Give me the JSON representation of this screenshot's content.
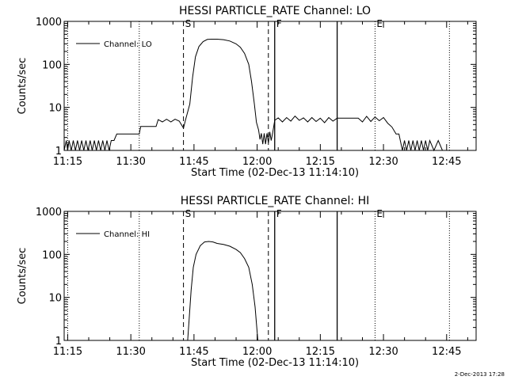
{
  "chart_data": [
    {
      "type": "line",
      "title": "HESSI PARTICLE_RATE Channel: LO",
      "xlabel": "Start Time (02-Dec-13 11:14:10)",
      "ylabel": "Counts/sec",
      "yscale": "log",
      "xlim": [
        "11:14:10",
        "12:52:00"
      ],
      "ylim": [
        1,
        1000
      ],
      "xticks": [
        "11:15",
        "11:30",
        "11:45",
        "12:00",
        "12:15",
        "12:30",
        "12:45"
      ],
      "yticks": [
        "1",
        "10",
        "100",
        "1000"
      ],
      "legend": {
        "position": "top-left",
        "entries": [
          "Channel: LO"
        ]
      },
      "markers": [
        {
          "label": "S",
          "time": "11:42:30",
          "style": "dashed"
        },
        {
          "label": "",
          "time": "12:02:40",
          "style": "dashed"
        },
        {
          "label": "F",
          "time": "12:04:10",
          "style": "solid"
        },
        {
          "label": "",
          "time": "12:19:00",
          "style": "solid"
        },
        {
          "label": "E",
          "time": "12:28:00",
          "style": "dotted"
        },
        {
          "label": "",
          "time": "11:32:00",
          "style": "dotted"
        },
        {
          "label": "",
          "time": "12:45:40",
          "style": "dotted"
        },
        {
          "label": "",
          "time": "11:15:00",
          "style": "dotted"
        }
      ],
      "series": [
        {
          "name": "Channel: LO",
          "points": [
            [
              "11:14:10",
              1.0
            ],
            [
              "11:14:40",
              1.7
            ],
            [
              "11:15:00",
              1.0
            ],
            [
              "11:15:20",
              1.7
            ],
            [
              "11:15:50",
              1.0
            ],
            [
              "11:16:20",
              1.7
            ],
            [
              "11:16:50",
              1.0
            ],
            [
              "11:17:20",
              1.7
            ],
            [
              "11:17:50",
              1.0
            ],
            [
              "11:18:20",
              1.7
            ],
            [
              "11:18:50",
              1.0
            ],
            [
              "11:19:20",
              1.7
            ],
            [
              "11:19:50",
              1.0
            ],
            [
              "11:20:20",
              1.7
            ],
            [
              "11:20:50",
              1.0
            ],
            [
              "11:21:20",
              1.7
            ],
            [
              "11:21:50",
              1.0
            ],
            [
              "11:22:20",
              1.7
            ],
            [
              "11:22:50",
              1.0
            ],
            [
              "11:23:20",
              1.7
            ],
            [
              "11:23:50",
              1.0
            ],
            [
              "11:24:20",
              1.7
            ],
            [
              "11:24:50",
              1.0
            ],
            [
              "11:25:20",
              1.7
            ],
            [
              "11:26:00",
              1.7
            ],
            [
              "11:26:40",
              2.4
            ],
            [
              "11:30:00",
              2.4
            ],
            [
              "11:32:00",
              2.4
            ],
            [
              "11:32:20",
              3.6
            ],
            [
              "11:36:00",
              3.6
            ],
            [
              "11:36:30",
              5.2
            ],
            [
              "11:37:30",
              4.6
            ],
            [
              "11:38:30",
              5.3
            ],
            [
              "11:39:30",
              4.6
            ],
            [
              "11:40:30",
              5.3
            ],
            [
              "11:41:30",
              4.8
            ],
            [
              "11:42:30",
              3.3
            ],
            [
              "11:43:00",
              5.2
            ],
            [
              "11:44:00",
              12
            ],
            [
              "11:44:40",
              50
            ],
            [
              "11:45:20",
              150
            ],
            [
              "11:46:10",
              260
            ],
            [
              "11:47:10",
              340
            ],
            [
              "11:48:10",
              380
            ],
            [
              "11:49:10",
              385
            ],
            [
              "11:50:30",
              385
            ],
            [
              "11:52:00",
              375
            ],
            [
              "11:53:30",
              350
            ],
            [
              "11:55:00",
              300
            ],
            [
              "11:56:00",
              250
            ],
            [
              "11:57:00",
              180
            ],
            [
              "11:58:00",
              100
            ],
            [
              "11:58:40",
              40
            ],
            [
              "11:59:20",
              12
            ],
            [
              "11:59:50",
              4.5
            ],
            [
              "12:00:20",
              3.0
            ],
            [
              "12:00:40",
              1.8
            ],
            [
              "12:01:00",
              2.5
            ],
            [
              "12:01:20",
              1.4
            ],
            [
              "12:01:40",
              2.5
            ],
            [
              "12:02:00",
              1.4
            ],
            [
              "12:02:20",
              2.5
            ],
            [
              "12:02:40",
              1.5
            ],
            [
              "12:03:00",
              2.7
            ],
            [
              "12:03:20",
              1.7
            ],
            [
              "12:03:40",
              2.5
            ],
            [
              "12:04:10",
              5.0
            ],
            [
              "12:05:00",
              5.7
            ],
            [
              "12:06:00",
              4.6
            ],
            [
              "12:07:00",
              5.8
            ],
            [
              "12:08:00",
              4.8
            ],
            [
              "12:09:00",
              6.3
            ],
            [
              "12:10:00",
              5.0
            ],
            [
              "12:11:00",
              5.7
            ],
            [
              "12:12:00",
              4.6
            ],
            [
              "12:13:00",
              5.8
            ],
            [
              "12:14:00",
              4.7
            ],
            [
              "12:15:00",
              5.6
            ],
            [
              "12:16:00",
              4.4
            ],
            [
              "12:17:00",
              5.8
            ],
            [
              "12:18:00",
              4.8
            ],
            [
              "12:19:00",
              5.6
            ],
            [
              "12:20:00",
              5.6
            ],
            [
              "12:22:00",
              5.6
            ],
            [
              "12:24:00",
              5.6
            ],
            [
              "12:25:00",
              4.6
            ],
            [
              "12:26:00",
              6.2
            ],
            [
              "12:27:00",
              4.7
            ],
            [
              "12:28:00",
              6.0
            ],
            [
              "12:29:00",
              4.9
            ],
            [
              "12:30:00",
              5.8
            ],
            [
              "12:31:00",
              4.3
            ],
            [
              "12:32:00",
              3.5
            ],
            [
              "12:33:00",
              2.4
            ],
            [
              "12:33:40",
              2.4
            ],
            [
              "12:34:00",
              1.7
            ],
            [
              "12:34:30",
              1.0
            ],
            [
              "12:35:00",
              1.7
            ],
            [
              "12:35:30",
              1.0
            ],
            [
              "12:36:00",
              1.7
            ],
            [
              "12:36:30",
              1.0
            ],
            [
              "12:37:00",
              1.7
            ],
            [
              "12:37:30",
              1.0
            ],
            [
              "12:38:00",
              1.7
            ],
            [
              "12:38:30",
              1.0
            ],
            [
              "12:39:00",
              1.7
            ],
            [
              "12:39:30",
              1.0
            ],
            [
              "12:40:00",
              1.7
            ],
            [
              "12:40:30",
              1.0
            ],
            [
              "12:41:00",
              1.7
            ],
            [
              "12:42:00",
              1.0
            ],
            [
              "12:43:00",
              1.7
            ],
            [
              "12:44:00",
              1.0
            ]
          ]
        }
      ]
    },
    {
      "type": "line",
      "title": "HESSI PARTICLE_RATE Channel: HI",
      "xlabel": "Start Time (02-Dec-13 11:14:10)",
      "ylabel": "Counts/sec",
      "yscale": "log",
      "xlim": [
        "11:14:10",
        "12:52:00"
      ],
      "ylim": [
        1,
        1000
      ],
      "xticks": [
        "11:15",
        "11:30",
        "11:45",
        "12:00",
        "12:15",
        "12:30",
        "12:45"
      ],
      "yticks": [
        "1",
        "10",
        "100",
        "1000"
      ],
      "legend": {
        "position": "top-left",
        "entries": [
          "Channel: HI"
        ]
      },
      "markers": [
        {
          "label": "S",
          "time": "11:42:30",
          "style": "dashed"
        },
        {
          "label": "",
          "time": "12:02:40",
          "style": "dashed"
        },
        {
          "label": "F",
          "time": "12:04:10",
          "style": "solid"
        },
        {
          "label": "",
          "time": "12:19:00",
          "style": "solid"
        },
        {
          "label": "E",
          "time": "12:28:00",
          "style": "dotted"
        },
        {
          "label": "",
          "time": "11:32:00",
          "style": "dotted"
        },
        {
          "label": "",
          "time": "12:45:40",
          "style": "dotted"
        },
        {
          "label": "",
          "time": "11:15:00",
          "style": "dotted"
        }
      ],
      "series": [
        {
          "name": "Channel: HI",
          "points": [
            [
              "11:43:30",
              1.0
            ],
            [
              "11:43:50",
              3
            ],
            [
              "11:44:20",
              15
            ],
            [
              "11:44:50",
              50
            ],
            [
              "11:45:30",
              100
            ],
            [
              "11:46:30",
              160
            ],
            [
              "11:47:30",
              195
            ],
            [
              "11:48:30",
              200
            ],
            [
              "11:49:30",
              195
            ],
            [
              "11:50:30",
              180
            ],
            [
              "11:52:00",
              170
            ],
            [
              "11:53:30",
              155
            ],
            [
              "11:55:00",
              130
            ],
            [
              "11:56:00",
              110
            ],
            [
              "11:57:00",
              80
            ],
            [
              "11:58:00",
              50
            ],
            [
              "11:58:50",
              20
            ],
            [
              "11:59:30",
              6
            ],
            [
              "11:59:50",
              2.5
            ],
            [
              "12:00:10",
              1.0
            ]
          ]
        }
      ]
    }
  ],
  "footer": {
    "timestamp": "2-Dec-2013 17:28"
  }
}
